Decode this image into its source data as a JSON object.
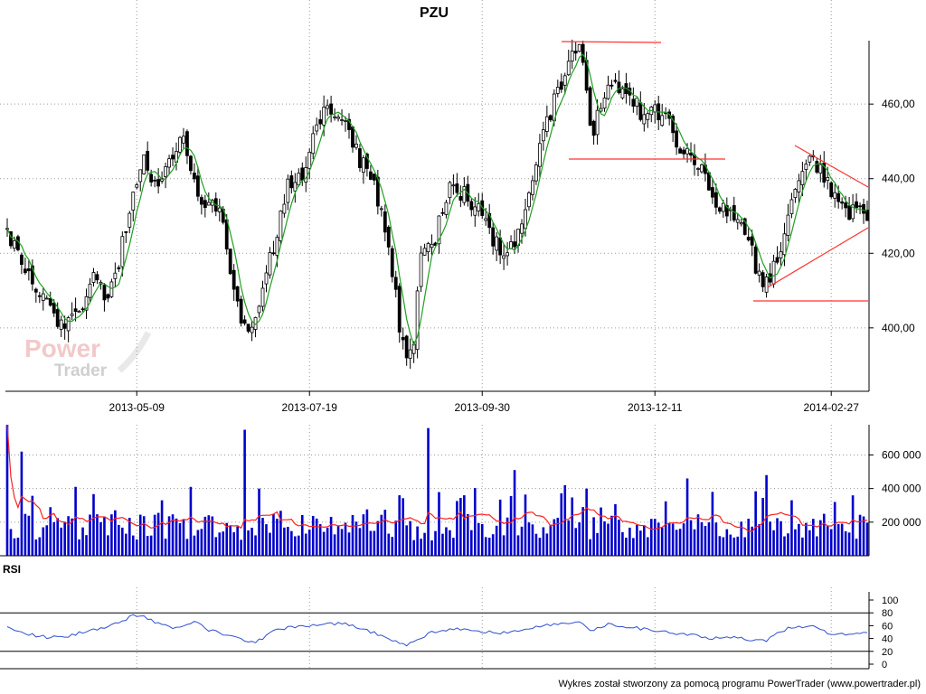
{
  "title": "PZU",
  "footer": "Wykres został stworzony za pomocą programu PowerTrader (www.powertrader.pl)",
  "watermark": {
    "word1": "Power",
    "word2": "Trader"
  },
  "colors": {
    "candle": "#000000",
    "ma": "#20a020",
    "trendline": "#ff3333",
    "volume_bar": "#0000cc",
    "volume_ma": "#ff2020",
    "rsi_line": "#3050d0",
    "grid": "#9a9a9a"
  },
  "chart_data": [
    {
      "type": "candlestick",
      "name": "price",
      "title": "PZU",
      "x_ticks": [
        "2013-05-09",
        "2013-07-19",
        "2013-09-30",
        "2013-12-11",
        "2014-02-27"
      ],
      "y_ticks": [
        "400,00",
        "420,00",
        "440,00",
        "460,00"
      ],
      "ylim": [
        383,
        477
      ],
      "grid": true,
      "n_sessions": 240,
      "anchors": [
        [
          0,
          426
        ],
        [
          12,
          414
        ],
        [
          22,
          407
        ],
        [
          32,
          399
        ],
        [
          40,
          404
        ],
        [
          48,
          413
        ],
        [
          56,
          409
        ],
        [
          63,
          419
        ],
        [
          70,
          437
        ],
        [
          76,
          446
        ],
        [
          84,
          437
        ],
        [
          90,
          444
        ],
        [
          98,
          451
        ],
        [
          104,
          438
        ],
        [
          110,
          432
        ],
        [
          118,
          434
        ],
        [
          126,
          410
        ],
        [
          134,
          398
        ],
        [
          140,
          402
        ],
        [
          148,
          421
        ],
        [
          156,
          438
        ],
        [
          164,
          440
        ],
        [
          172,
          452
        ],
        [
          180,
          460
        ],
        [
          188,
          457
        ],
        [
          196,
          446
        ],
        [
          204,
          440
        ],
        [
          212,
          425
        ],
        [
          220,
          397
        ],
        [
          226,
          391
        ],
        [
          230,
          418
        ],
        [
          238,
          422
        ],
        [
          246,
          437
        ],
        [
          254,
          436
        ],
        [
          262,
          432
        ],
        [
          270,
          424
        ],
        [
          278,
          420
        ],
        [
          286,
          426
        ],
        [
          296,
          446
        ],
        [
          304,
          459
        ],
        [
          312,
          470
        ],
        [
          320,
          475
        ],
        [
          326,
          451
        ],
        [
          332,
          461
        ],
        [
          340,
          466
        ],
        [
          348,
          463
        ],
        [
          356,
          456
        ],
        [
          364,
          458
        ],
        [
          372,
          452
        ],
        [
          380,
          446
        ],
        [
          388,
          441
        ],
        [
          396,
          432
        ],
        [
          404,
          432
        ],
        [
          412,
          426
        ],
        [
          418,
          416
        ],
        [
          424,
          412
        ],
        [
          430,
          418
        ],
        [
          440,
          438
        ],
        [
          448,
          445
        ],
        [
          456,
          441
        ],
        [
          464,
          434
        ],
        [
          470,
          431
        ],
        [
          476,
          434
        ],
        [
          480,
          429
        ]
      ],
      "moving_average": "green line",
      "annotations": {
        "resistance_top": [
          [
            621,
            46
          ],
          [
            731,
            47
          ]
        ],
        "support_mid": [
          [
            629,
            176
          ],
          [
            802,
            176
          ]
        ],
        "support_low": [
          [
            833,
            333
          ],
          [
            960,
            333
          ]
        ],
        "triangle_upper": [
          [
            879,
            161
          ],
          [
            960,
            207
          ]
        ],
        "triangle_lower": [
          [
            849,
            318
          ],
          [
            960,
            252
          ]
        ]
      }
    },
    {
      "type": "bar",
      "name": "volume",
      "y_ticks": [
        "200 000",
        "400 000",
        "600 000"
      ],
      "ylim": [
        0,
        780000
      ],
      "grid": true,
      "moving_average": "red line",
      "peaks": [
        [
          0,
          780000
        ],
        [
          8,
          620000
        ],
        [
          39,
          410000
        ],
        [
          86,
          330000
        ],
        [
          102,
          410000
        ],
        [
          132,
          750000
        ],
        [
          141,
          400000
        ],
        [
          218,
          360000
        ],
        [
          235,
          760000
        ],
        [
          255,
          360000
        ],
        [
          284,
          510000
        ],
        [
          312,
          420000
        ],
        [
          324,
          400000
        ],
        [
          380,
          460000
        ],
        [
          394,
          380000
        ],
        [
          424,
          480000
        ],
        [
          462,
          320000
        ]
      ]
    },
    {
      "type": "line",
      "name": "RSI",
      "label": "RSI",
      "y_ticks": [
        "0",
        "20",
        "40",
        "60",
        "80",
        "100"
      ],
      "ylim": [
        0,
        100
      ],
      "reference_lines": [
        20,
        80
      ],
      "grid": true,
      "anchors": [
        [
          0,
          58
        ],
        [
          12,
          47
        ],
        [
          22,
          42
        ],
        [
          32,
          42
        ],
        [
          44,
          52
        ],
        [
          56,
          58
        ],
        [
          70,
          75
        ],
        [
          76,
          75
        ],
        [
          84,
          63
        ],
        [
          96,
          55
        ],
        [
          104,
          68
        ],
        [
          112,
          53
        ],
        [
          126,
          44
        ],
        [
          134,
          33
        ],
        [
          140,
          36
        ],
        [
          150,
          55
        ],
        [
          164,
          58
        ],
        [
          180,
          64
        ],
        [
          190,
          62
        ],
        [
          198,
          55
        ],
        [
          210,
          44
        ],
        [
          222,
          30
        ],
        [
          228,
          36
        ],
        [
          236,
          50
        ],
        [
          250,
          55
        ],
        [
          262,
          52
        ],
        [
          280,
          48
        ],
        [
          296,
          58
        ],
        [
          308,
          64
        ],
        [
          320,
          67
        ],
        [
          326,
          52
        ],
        [
          336,
          62
        ],
        [
          350,
          57
        ],
        [
          366,
          50
        ],
        [
          380,
          46
        ],
        [
          394,
          40
        ],
        [
          404,
          42
        ],
        [
          414,
          38
        ],
        [
          424,
          37
        ],
        [
          436,
          57
        ],
        [
          448,
          60
        ],
        [
          460,
          47
        ],
        [
          470,
          45
        ],
        [
          480,
          50
        ]
      ]
    }
  ]
}
